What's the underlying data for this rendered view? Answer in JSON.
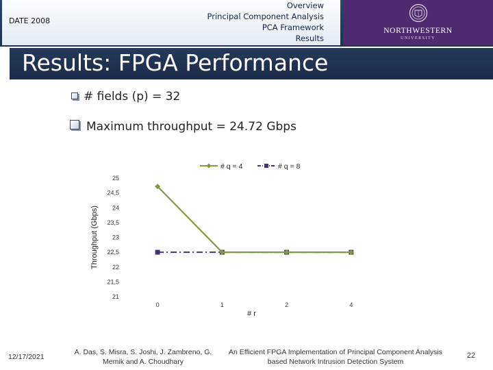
{
  "header": {
    "conference": "DATE 2008",
    "nav": [
      "Overview",
      "Principal Component Analysis",
      "PCA Framework",
      "Results"
    ],
    "logo_name": "NORTHWESTERN",
    "logo_sub": "UNIVERSITY",
    "colors": {
      "dark_band": "#1d3150",
      "purple": "#4f2a6e"
    }
  },
  "title": "Results: FPGA Performance",
  "bullets": [
    "# fields (p) = 32",
    "Maximum throughput = 24.72 Gbps"
  ],
  "chart_data": {
    "type": "line",
    "categories": [
      "0",
      "1",
      "2",
      "4"
    ],
    "series": [
      {
        "name": "# q = 4",
        "values": [
          24.72,
          22.5,
          22.5,
          22.5
        ],
        "color": "#7f9a3a",
        "marker": "diamond",
        "dash": "solid"
      },
      {
        "name": "# q = 8",
        "values": [
          22.5,
          22.5,
          22.5,
          22.5
        ],
        "color": "#47307a",
        "marker": "square",
        "dash": "dashdot"
      }
    ],
    "title": "",
    "xlabel": "# r",
    "ylabel": "Throughput (Gbps)",
    "ylim": [
      21,
      25
    ],
    "yticks": [
      "21",
      "21,5",
      "22",
      "22,5",
      "23",
      "23,5",
      "24",
      "24,5",
      "25"
    ],
    "grid": false,
    "legend": "top"
  },
  "footer": {
    "date": "12/17/2021",
    "authors": "A. Das, S. Misra, S. Joshi, J. Zambreno, G. Memik and A. Choudhary",
    "paper": "An Efficient FPGA Implementation of Principal Component Analysis based Network Intrusion Detection System",
    "page": "22"
  }
}
